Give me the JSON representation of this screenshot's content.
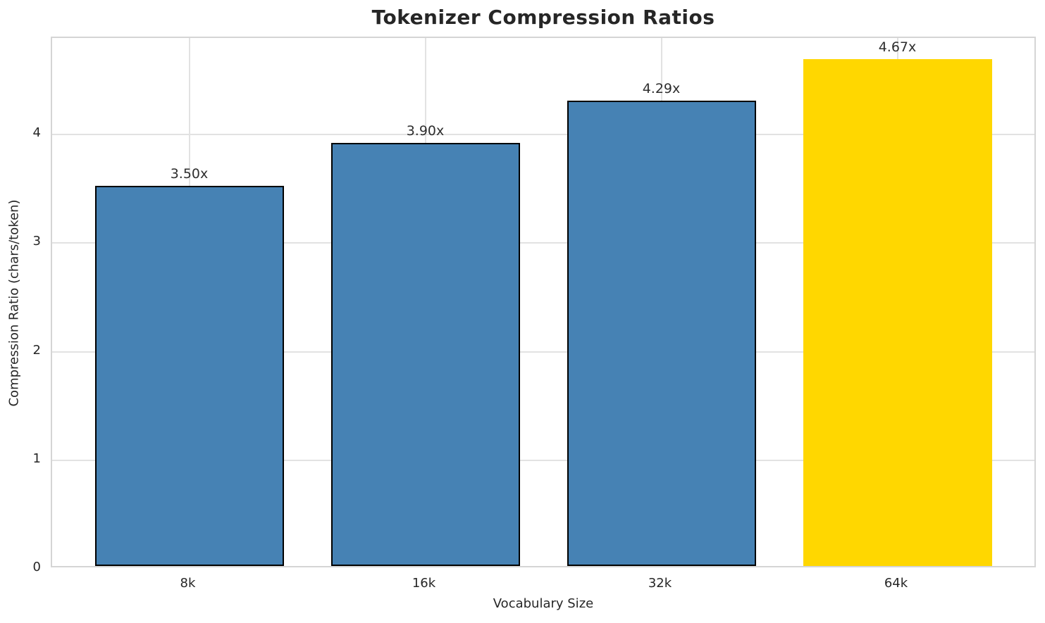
{
  "title": "Tokenizer Compression Ratios",
  "chart_data": {
    "type": "bar",
    "title": "Tokenizer Compression Ratios",
    "categories": [
      "8k",
      "16k",
      "32k",
      "64k"
    ],
    "values": [
      3.5,
      3.9,
      4.29,
      4.67
    ],
    "bar_labels": [
      "3.50x",
      "3.90x",
      "4.29x",
      "4.67x"
    ],
    "xlabel": "Vocabulary Size",
    "ylabel": "Compression Ratio (chars/token)",
    "yticks": [
      0,
      1,
      2,
      3,
      4
    ],
    "ylim": [
      0,
      4.89
    ],
    "grid": true,
    "legend": "none",
    "bar_colors": [
      "#4682B4",
      "#4682B4",
      "#4682B4",
      "#FFD700"
    ],
    "bar_edge_colors": [
      "#000000",
      "#000000",
      "#000000",
      "none"
    ],
    "grid_color": "#e2e2e2",
    "spine_color": "#d5d5d5",
    "text_color": "#262626",
    "highlight_color": "#FFD700",
    "primary_color": "#4682B4"
  }
}
